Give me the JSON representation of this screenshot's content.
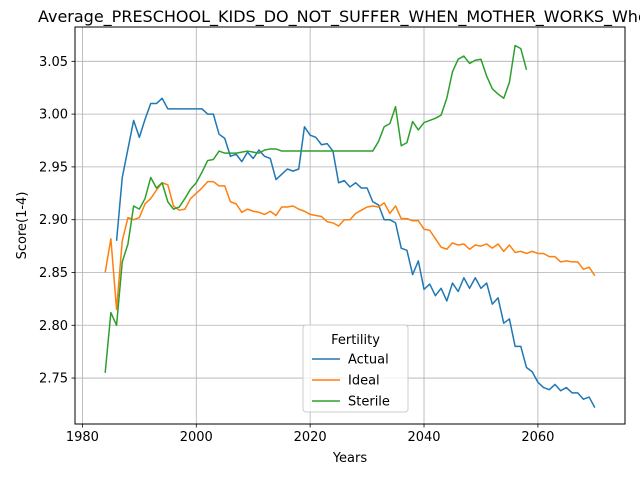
{
  "chart_data": {
    "type": "line",
    "title": "Average_PRESCHOOL_KIDS_DO_NOT_SUFFER_WHEN_MOTHER_WORKS_Whole",
    "xlabel": "Years",
    "ylabel": "Score(1-4)",
    "xlim": [
      1978.7,
      2075.3
    ],
    "ylim": [
      2.7065,
      3.0825
    ],
    "xticks": [
      1980,
      2000,
      2020,
      2040,
      2060
    ],
    "xtick_labels": [
      "1980",
      "2000",
      "2020",
      "2040",
      "2060"
    ],
    "yticks": [
      2.75,
      2.8,
      2.85,
      2.9,
      2.95,
      3.0,
      3.05
    ],
    "ytick_labels": [
      "2.75",
      "2.80",
      "2.85",
      "2.90",
      "2.95",
      "3.00",
      "3.05"
    ],
    "grid": true,
    "legend": {
      "title": "Fertility",
      "placement": "lower center"
    },
    "colors": {
      "Actual": "#1f77b4",
      "Ideal": "#ff7f0e",
      "Sterile": "#2ca02c"
    },
    "series": [
      {
        "name": "Actual",
        "x": [
          1986,
          1987,
          1988,
          1989,
          1990,
          1991,
          1992,
          1993,
          1994,
          1995,
          1996,
          1997,
          1998,
          1999,
          2000,
          2001,
          2002,
          2003,
          2004,
          2005,
          2006,
          2007,
          2008,
          2009,
          2010,
          2011,
          2012,
          2013,
          2014,
          2015,
          2016,
          2017,
          2018,
          2019,
          2020,
          2021,
          2022,
          2023,
          2024,
          2025,
          2026,
          2027,
          2028,
          2029,
          2030,
          2031,
          2032,
          2033,
          2034,
          2035,
          2036,
          2037,
          2038,
          2039,
          2040,
          2041,
          2042,
          2043,
          2044,
          2045,
          2046,
          2047,
          2048,
          2049,
          2050,
          2051,
          2052,
          2053,
          2054,
          2055,
          2056,
          2057,
          2058,
          2059,
          2060,
          2061,
          2062,
          2063,
          2064,
          2065,
          2066,
          2067,
          2068,
          2069,
          2070
        ],
        "y": [
          2.88,
          2.94,
          2.967,
          2.994,
          2.978,
          2.995,
          3.01,
          3.01,
          3.015,
          3.005,
          3.005,
          3.005,
          3.005,
          3.005,
          3.005,
          3.005,
          3.0,
          3.0,
          2.981,
          2.977,
          2.96,
          2.962,
          2.955,
          2.964,
          2.958,
          2.966,
          2.96,
          2.958,
          2.938,
          2.943,
          2.948,
          2.946,
          2.948,
          2.988,
          2.98,
          2.978,
          2.971,
          2.972,
          2.965,
          2.935,
          2.937,
          2.931,
          2.935,
          2.93,
          2.93,
          2.917,
          2.914,
          2.9,
          2.9,
          2.897,
          2.873,
          2.871,
          2.848,
          2.861,
          2.834,
          2.839,
          2.828,
          2.835,
          2.823,
          2.84,
          2.832,
          2.845,
          2.835,
          2.845,
          2.835,
          2.84,
          2.82,
          2.826,
          2.802,
          2.806,
          2.78,
          2.78,
          2.76,
          2.756,
          2.746,
          2.741,
          2.739,
          2.744,
          2.738,
          2.741,
          2.736,
          2.736,
          2.73,
          2.732,
          2.722
        ]
      },
      {
        "name": "Ideal",
        "x": [
          1984,
          1985,
          1986,
          1987,
          1988,
          1989,
          1990,
          1991,
          1992,
          1993,
          1994,
          1995,
          1996,
          1997,
          1998,
          1999,
          2000,
          2001,
          2002,
          2003,
          2004,
          2005,
          2006,
          2007,
          2008,
          2009,
          2010,
          2011,
          2012,
          2013,
          2014,
          2015,
          2016,
          2017,
          2018,
          2019,
          2020,
          2021,
          2022,
          2023,
          2024,
          2025,
          2026,
          2027,
          2028,
          2029,
          2030,
          2031,
          2032,
          2033,
          2034,
          2035,
          2036,
          2037,
          2038,
          2039,
          2040,
          2041,
          2042,
          2043,
          2044,
          2045,
          2046,
          2047,
          2048,
          2049,
          2050,
          2051,
          2052,
          2053,
          2054,
          2055,
          2056,
          2057,
          2058,
          2059,
          2060,
          2061,
          2062,
          2063,
          2064,
          2065,
          2066,
          2067,
          2068,
          2069,
          2070
        ],
        "y": [
          2.85,
          2.882,
          2.815,
          2.88,
          2.902,
          2.9,
          2.902,
          2.915,
          2.92,
          2.928,
          2.935,
          2.933,
          2.913,
          2.909,
          2.91,
          2.92,
          2.925,
          2.93,
          2.936,
          2.936,
          2.932,
          2.932,
          2.917,
          2.915,
          2.907,
          2.91,
          2.908,
          2.907,
          2.905,
          2.908,
          2.904,
          2.912,
          2.912,
          2.913,
          2.91,
          2.908,
          2.905,
          2.904,
          2.903,
          2.898,
          2.897,
          2.894,
          2.9,
          2.9,
          2.906,
          2.909,
          2.912,
          2.913,
          2.912,
          2.916,
          2.906,
          2.913,
          2.901,
          2.901,
          2.899,
          2.899,
          2.891,
          2.89,
          2.882,
          2.874,
          2.872,
          2.878,
          2.876,
          2.877,
          2.872,
          2.876,
          2.875,
          2.877,
          2.873,
          2.877,
          2.87,
          2.876,
          2.869,
          2.87,
          2.868,
          2.87,
          2.868,
          2.868,
          2.865,
          2.865,
          2.86,
          2.861,
          2.86,
          2.86,
          2.853,
          2.855,
          2.847
        ]
      },
      {
        "name": "Sterile",
        "x": [
          1984,
          1985,
          1986,
          1987,
          1988,
          1989,
          1990,
          1991,
          1992,
          1993,
          1994,
          1995,
          1996,
          1997,
          1998,
          1999,
          2000,
          2001,
          2002,
          2003,
          2004,
          2005,
          2006,
          2007,
          2008,
          2009,
          2010,
          2011,
          2012,
          2013,
          2014,
          2015,
          2016,
          2017,
          2018,
          2019,
          2020,
          2021,
          2022,
          2023,
          2024,
          2025,
          2026,
          2027,
          2028,
          2029,
          2030,
          2031,
          2032,
          2033,
          2034,
          2035,
          2036,
          2037,
          2038,
          2039,
          2040,
          2041,
          2042,
          2043,
          2044,
          2045,
          2046,
          2047,
          2048,
          2049,
          2050,
          2051,
          2052,
          2053,
          2054,
          2055,
          2056,
          2057,
          2058
        ],
        "y": [
          2.755,
          2.812,
          2.8,
          2.86,
          2.877,
          2.913,
          2.91,
          2.92,
          2.94,
          2.93,
          2.935,
          2.917,
          2.91,
          2.912,
          2.92,
          2.929,
          2.935,
          2.945,
          2.956,
          2.957,
          2.965,
          2.963,
          2.963,
          2.963,
          2.964,
          2.965,
          2.964,
          2.963,
          2.966,
          2.967,
          2.967,
          2.965,
          2.965,
          2.965,
          2.965,
          2.965,
          2.965,
          2.965,
          2.965,
          2.965,
          2.965,
          2.965,
          2.965,
          2.965,
          2.965,
          2.965,
          2.965,
          2.965,
          2.974,
          2.988,
          2.991,
          3.007,
          2.97,
          2.973,
          2.993,
          2.985,
          2.992,
          2.994,
          2.996,
          2.999,
          3.015,
          3.04,
          3.052,
          3.055,
          3.048,
          3.051,
          3.052,
          3.036,
          3.024,
          3.019,
          3.015,
          3.03,
          3.065,
          3.062,
          3.042
        ]
      }
    ]
  }
}
